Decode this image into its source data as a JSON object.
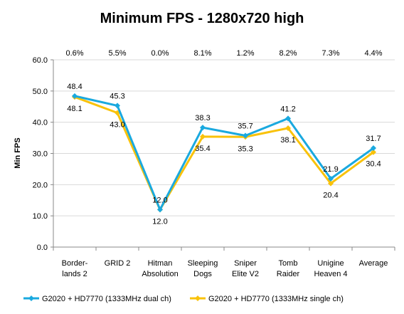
{
  "chart_data": {
    "type": "line",
    "title": "Minimum FPS - 1280x720 high",
    "xlabel": "",
    "ylabel": "Min FPS",
    "ylim": [
      0,
      60
    ],
    "yticks": [
      "0.0",
      "10.0",
      "20.0",
      "30.0",
      "40.0",
      "50.0",
      "60.0"
    ],
    "grid": true,
    "legend_position": "bottom",
    "categories": [
      [
        "Border-",
        "lands 2"
      ],
      [
        "GRID 2"
      ],
      [
        "Hitman",
        "Absolution"
      ],
      [
        "Sleeping",
        "Dogs"
      ],
      [
        "Sniper",
        "Elite V2"
      ],
      [
        "Tomb",
        "Raider"
      ],
      [
        "Unigine",
        "Heaven 4"
      ],
      [
        "Average"
      ]
    ],
    "top_annotations": [
      "0.6%",
      "5.5%",
      "0.0%",
      "8.1%",
      "1.2%",
      "8.2%",
      "7.3%",
      "4.4%"
    ],
    "series": [
      {
        "name": "G2020 + HD7770 (1333MHz dual ch)",
        "color": "#1aa9df",
        "values": [
          48.4,
          45.3,
          12.0,
          38.3,
          35.7,
          41.2,
          21.9,
          31.7
        ],
        "labels": [
          "48.4",
          "45.3",
          "12.0",
          "38.3",
          "35.7",
          "41.2",
          "21.9",
          "31.7"
        ]
      },
      {
        "name": "G2020 + HD7770 (1333MHz single ch)",
        "color": "#f9c20a",
        "values": [
          48.1,
          43.0,
          12.0,
          35.4,
          35.3,
          38.1,
          20.4,
          30.4
        ],
        "labels": [
          "48.1",
          "43.0",
          "12.0",
          "35.4",
          "35.3",
          "38.1",
          "20.4",
          "30.4"
        ]
      }
    ]
  }
}
